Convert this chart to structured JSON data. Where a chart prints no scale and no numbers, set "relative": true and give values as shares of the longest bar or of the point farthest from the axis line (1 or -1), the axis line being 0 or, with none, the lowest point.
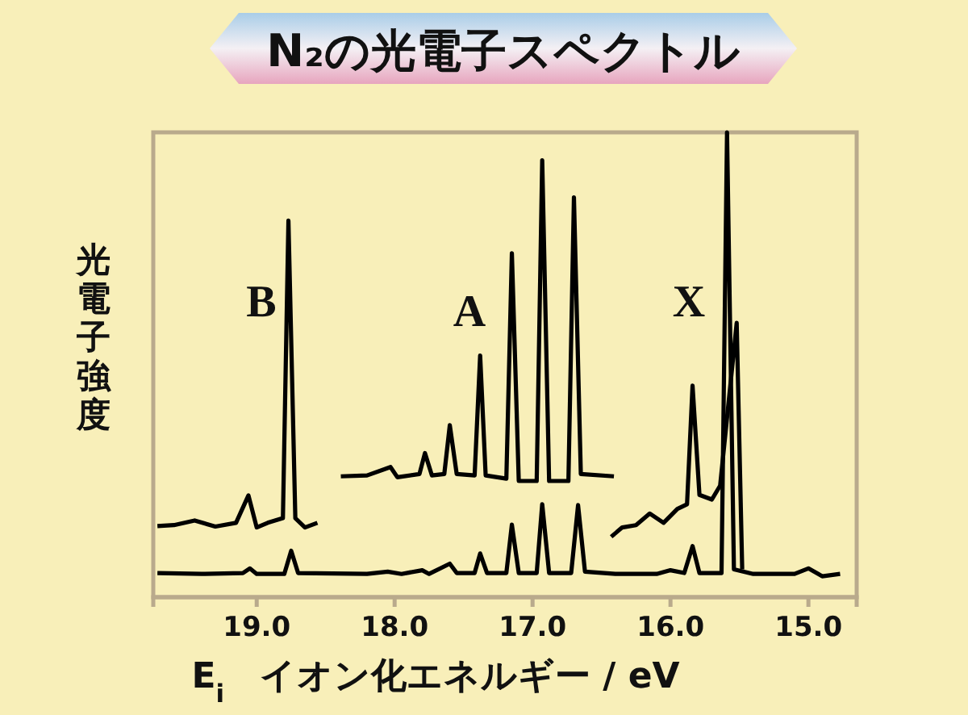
{
  "chart_data": {
    "type": "line",
    "title": "N₂の光電子スペクトル",
    "xlabel": "E$_{i}$　イオン化エネルギー / eV",
    "ylabel": "光電子強度",
    "relative": true,
    "xlim": [
      19.75,
      14.65
    ],
    "xticks": [
      {
        "value": 19,
        "label": "19.0"
      },
      {
        "value": 18,
        "label": "18.0"
      },
      {
        "value": 17,
        "label": "17.0"
      },
      {
        "value": 16,
        "label": "16.0"
      },
      {
        "value": 15,
        "label": "15.0"
      }
    ],
    "line_style": "solid",
    "annotations": [
      "B",
      "A",
      "X"
    ],
    "series": [
      {
        "color": "#000000",
        "x": [
          19.72,
          19.4,
          19.1,
          19.05,
          19.0,
          18.8,
          18.75,
          18.7,
          18.2,
          18.05,
          17.95,
          17.8,
          17.75,
          17.6,
          17.55,
          17.42,
          17.38,
          17.33,
          17.19,
          17.15,
          17.1,
          16.97,
          16.93,
          16.88,
          16.72,
          16.67,
          16.62,
          16.4,
          16.1,
          16.0,
          15.9,
          15.84,
          15.79,
          15.63,
          15.59,
          15.54,
          15.4,
          15.1,
          15.0,
          14.9,
          14.77
        ],
        "values": [
          0.052,
          0.05,
          0.052,
          0.062,
          0.05,
          0.05,
          0.1,
          0.052,
          0.05,
          0.055,
          0.05,
          0.058,
          0.05,
          0.072,
          0.052,
          0.052,
          0.094,
          0.052,
          0.052,
          0.156,
          0.052,
          0.052,
          0.2,
          0.052,
          0.052,
          0.198,
          0.055,
          0.05,
          0.05,
          0.058,
          0.052,
          0.11,
          0.052,
          0.052,
          1.0,
          0.06,
          0.05,
          0.05,
          0.062,
          0.045,
          0.05
        ]
      },
      {
        "color": "#000000",
        "x": [
          19.72,
          19.6,
          19.45,
          19.3,
          19.15,
          19.06,
          19.0,
          18.92,
          18.81,
          18.77,
          18.72,
          18.65,
          18.56
        ],
        "values": [
          0.153,
          0.155,
          0.165,
          0.152,
          0.16,
          0.219,
          0.15,
          0.16,
          0.17,
          0.81,
          0.17,
          0.15,
          0.16
        ]
      },
      {
        "color": "#000000",
        "x": [
          18.39,
          18.2,
          18.03,
          17.98,
          17.82,
          17.78,
          17.73,
          17.64,
          17.6,
          17.55,
          17.42,
          17.38,
          17.34,
          17.19,
          17.15,
          17.1,
          16.97,
          16.93,
          16.88,
          16.74,
          16.7,
          16.65,
          16.41
        ],
        "values": [
          0.26,
          0.262,
          0.28,
          0.258,
          0.265,
          0.31,
          0.262,
          0.265,
          0.37,
          0.265,
          0.262,
          0.52,
          0.262,
          0.255,
          0.74,
          0.25,
          0.25,
          0.94,
          0.25,
          0.25,
          0.86,
          0.265,
          0.26
        ]
      },
      {
        "color": "#000000",
        "x": [
          16.43,
          16.35,
          16.25,
          16.15,
          16.05,
          15.95,
          15.88,
          15.84,
          15.79,
          15.7,
          15.64,
          15.52,
          15.48
        ],
        "values": [
          0.13,
          0.15,
          0.155,
          0.18,
          0.16,
          0.19,
          0.2,
          0.455,
          0.22,
          0.21,
          0.24,
          0.59,
          0.06
        ]
      }
    ]
  }
}
